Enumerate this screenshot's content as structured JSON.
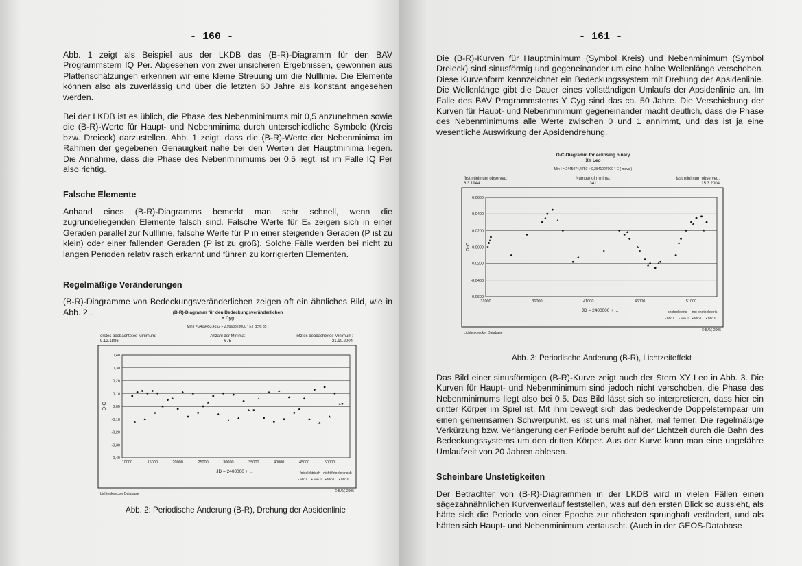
{
  "left": {
    "page_number": "- 160 -",
    "p1": "Abb. 1 zeigt als Beispiel aus der LKDB das (B-R)-Diagramm für den BAV Programmstern IQ Per. Abgesehen von zwei unsicheren Ergebnissen, gewonnen aus Plattenschätzungen erkennen wir eine kleine Streuung um die Nulllinie. Die Elemente können also als zuverlässig und über die letzten 60 Jahre als konstant angesehen werden.",
    "p2": "Bei der LKDB ist es üblich, die Phase des Nebenminimums mit 0,5 anzunehmen sowie die (B-R)-Werte für Haupt- und Nebenminima durch unterschiedliche Symbole (Kreis bzw. Dreieck) darzustellen. Abb. 1 zeigt, dass die (B-R)-Werte der Nebenminima im Rahmen der gegebenen Genauigkeit nahe bei den Werten der Hauptminima liegen. Die Annahme, dass die Phase des Nebenminimums bei 0,5 liegt, ist im Falle IQ Per also richtig.",
    "h1": "Falsche Elemente",
    "p3": "Anhand eines (B-R)-Diagramms bemerkt man sehr schnell, wenn die zugrundeliegenden Elemente falsch sind. Falsche Werte für E₀ zeigen sich in einer Geraden parallel zur Nulllinie, falsche Werte für P in einer steigenden Geraden (P ist zu klein) oder einer fallenden Geraden (P ist zu groß). Solche Fälle werden bei nicht zu langen Perioden relativ rasch erkannt und führen zu korrigierten Elementen.",
    "h2": "Regelmäßige Veränderungen",
    "p4": "(B-R)-Diagramme von Bedeckungsveränderlichen zeigen oft ein ähnliches Bild, wie in Abb. 2..",
    "caption": "Abb. 2: Periodische Änderung (B-R), Drehung der Apsidenlinie"
  },
  "right": {
    "page_number": "- 161 -",
    "p1": "Die (B-R)-Kurven für Hauptminimum (Symbol Kreis) und Nebenminimum (Symbol Dreieck) sind sinusförmig und gegeneinander um eine halbe Wellenlänge verschoben. Diese Kurvenform kennzeichnet ein Bedeckungssystem mit Drehung der Apsidenlinie. Die Wellenlänge gibt die Dauer eines vollständigen Umlaufs der Apsidenlinie an. Im Falle des BAV Programmsterns Y Cyg sind das ca. 50 Jahre. Die Verschiebung der Kurven für Haupt- und Nebenminimum gegeneinander macht deutlich, dass die Phase des Nebenminimums alle Werte zwischen 0 und 1 annimmt, und das ist ja eine wesentliche Auswirkung der Apsidendrehung.",
    "caption": "Abb. 3: Periodische Änderung (B-R), Lichtzeiteffekt",
    "p2": "Das Bild einer sinusförmigen (B-R)-Kurve zeigt auch der Stern XY Leo in Abb. 3. Die Kurven für Haupt- und Nebenminimum sind jedoch nicht verschoben, die Phase des Nebenminimums liegt also bei 0,5. Das Bild lässt sich so interpretieren, dass hier ein dritter Körper im Spiel ist. Mit ihm bewegt sich das bedeckende Doppelsternpaar um einen gemeinsamen Schwerpunkt, es ist uns mal näher, mal ferner. Die regelmäßige Verkürzung bzw. Verlängerung der Periode beruht auf der Lichtzeit durch die Bahn des Bedeckungssystems um den dritten Körper. Aus der Kurve kann man eine ungefähre Umlaufzeit von  20 Jahren ablesen.",
    "h1": "Scheinbare Unstetigkeiten",
    "p3": "Der Betrachter von (B-R)-Diagrammen in der LKDB wird in vielen Fällen einen sägezahnähnlichen Kurvenverlauf feststellen, was auf den ersten Blick so aussieht, als hätte sich die Periode von einer Epoche zur nächsten sprunghaft verändert, und als hätten sich Haupt- und Nebenminimum vertauscht. (Auch in der GEOS-Database"
  },
  "chart_data": [
    {
      "type": "scatter",
      "title": "(B-R)-Diagramm für den Bedeckungsveränderlichen",
      "subtitle": "Y Cyg",
      "elements": "Min I =   2409453,4152  +   2,9963328000  * E        ( qcvs 85  )",
      "first_label": "erstes beobachtetes Minimum:",
      "first_value": "9.12.1886",
      "count_label": "Anzahl der Minima:",
      "count_value": "675",
      "last_label": "letztes beobachtetes Minimum:",
      "last_value": "21.10.2004",
      "xlabel": "JD = 2400000 + ...",
      "ylabel": "O-C",
      "xticks": [
        "10000",
        "15000",
        "20000",
        "25000",
        "30000",
        "35000",
        "40000",
        "45000",
        "50000"
      ],
      "yticks": [
        "0,40",
        "0,30",
        "0,20",
        "0,10",
        "0,00",
        "-0,10",
        "-0,20",
        "-0,30",
        "-0,40"
      ],
      "xlim": [
        9000,
        54000
      ],
      "ylim": [
        -0.4,
        0.4
      ],
      "grid": true,
      "legend": {
        "group1": "fotoelektrisch",
        "group2": "nicht fotoelektrisch",
        "items": [
          "Min I",
          "Min II",
          "Min I",
          "Min II"
        ],
        "placement": "bottom-right"
      },
      "source": "Lichtenknecker Database",
      "copyright": "© BAV, 2005",
      "series": [
        {
          "name": "Min I",
          "x": [
            11000,
            12000,
            13000,
            14000,
            15000,
            16000,
            18000,
            20000,
            22000,
            24000,
            25000,
            27000,
            29000,
            31000,
            33000,
            35000,
            37000,
            39000,
            41000,
            43000,
            45000,
            47000,
            49000,
            51000,
            52500
          ],
          "y": [
            0.08,
            0.11,
            0.12,
            0.1,
            0.12,
            0.1,
            0.05,
            -0.02,
            -0.08,
            -0.05,
            0.0,
            0.08,
            0.1,
            0.09,
            0.04,
            -0.03,
            -0.09,
            -0.12,
            -0.1,
            -0.05,
            0.06,
            0.13,
            0.15,
            0.1,
            0.02
          ]
        },
        {
          "name": "Min II",
          "x": [
            11500,
            13500,
            15500,
            17000,
            19000,
            21000,
            23000,
            26000,
            28000,
            30000,
            32000,
            34000,
            36000,
            38000,
            40000,
            42000,
            44000,
            46000,
            48000,
            50000,
            52000
          ],
          "y": [
            -0.12,
            -0.1,
            -0.05,
            0.0,
            0.06,
            0.11,
            0.1,
            0.03,
            -0.06,
            -0.11,
            -0.09,
            -0.03,
            0.06,
            0.11,
            0.12,
            0.07,
            -0.02,
            -0.1,
            -0.13,
            -0.08,
            0.02
          ]
        }
      ]
    },
    {
      "type": "scatter",
      "title": "O-C-Diagramm for eclipsing binary",
      "subtitle": "XY Leo",
      "elements": "Min I =   2445074,4750  +   0,2841027000  * E        ( mcvs       )",
      "first_label": "first minimum observed:",
      "first_value": "6.3.1944",
      "count_label": "Number of minima:",
      "count_value": "341",
      "last_label": "last minimum observed:",
      "last_value": "15.3.2004",
      "xlabel": "JD = 2400000 + ...",
      "ylabel": "O-C",
      "xticks": [
        "31000",
        "36000",
        "41000",
        "46000",
        "51000"
      ],
      "yticks": [
        "0,0600",
        "0,0400",
        "0,0200",
        "0,0000",
        "-0,0200",
        "-0,0400",
        "-0,0600"
      ],
      "xlim": [
        31000,
        53500
      ],
      "ylim": [
        -0.06,
        0.06
      ],
      "grid": true,
      "legend": {
        "group1": "photoelectric",
        "group2": "not photoelectric",
        "items": [
          "Min I",
          "Min II",
          "Min I",
          "Min II"
        ],
        "placement": "bottom-right"
      },
      "source": "Lichtenknecker Database",
      "copyright": "© BAV, 2005",
      "series": [
        {
          "name": "Min I",
          "x": [
            31200,
            31300,
            31500,
            33500,
            35000,
            36500,
            37000,
            37500,
            38500,
            39500,
            42500,
            44000,
            44500,
            45000,
            46000,
            46500,
            47000,
            47500,
            48000,
            49500,
            50000,
            50500,
            51000,
            51500,
            52000,
            52500
          ],
          "y": [
            0.0,
            0.005,
            0.012,
            -0.01,
            0.015,
            0.03,
            0.04,
            0.045,
            0.02,
            -0.018,
            -0.005,
            0.02,
            0.015,
            0.01,
            -0.005,
            -0.015,
            -0.02,
            -0.025,
            -0.018,
            -0.01,
            0.01,
            0.02,
            0.03,
            0.035,
            0.037,
            0.03
          ]
        },
        {
          "name": "Min II",
          "x": [
            31400,
            36800,
            38000,
            40000,
            44800,
            45800,
            46800,
            47800,
            49800,
            51200,
            52200
          ],
          "y": [
            0.008,
            0.035,
            0.032,
            -0.012,
            0.018,
            0.0,
            -0.022,
            -0.02,
            0.005,
            0.028,
            0.02
          ]
        }
      ]
    }
  ]
}
